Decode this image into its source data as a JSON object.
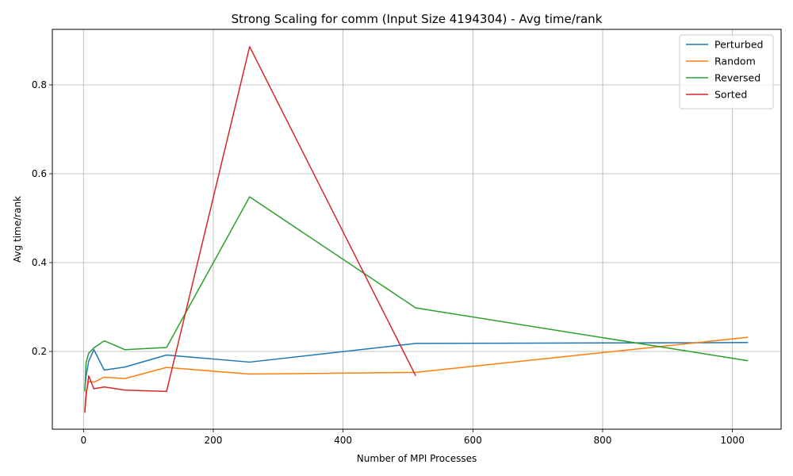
{
  "chart_data": {
    "type": "line",
    "title": "Strong Scaling for comm (Input Size 4194304) - Avg time/rank",
    "xlabel": "Number of MPI Processes",
    "ylabel": "Avg time/rank",
    "xlim": [
      -48,
      1075
    ],
    "ylim": [
      0.025,
      0.925
    ],
    "xticks": [
      0,
      200,
      400,
      600,
      800,
      1000
    ],
    "yticks": [
      0.2,
      0.4,
      0.6,
      0.8
    ],
    "grid": true,
    "legend_position": "top-right",
    "series": [
      {
        "name": "Perturbed",
        "color": "#1f77b4",
        "x": [
          2,
          4,
          8,
          16,
          32,
          64,
          128,
          256,
          512,
          1024
        ],
        "y": [
          0.115,
          0.145,
          0.178,
          0.204,
          0.158,
          0.165,
          0.192,
          0.176,
          0.218,
          0.22
        ]
      },
      {
        "name": "Random",
        "color": "#ff7f0e",
        "x": [
          2,
          4,
          8,
          16,
          32,
          64,
          128,
          256,
          512,
          1024
        ],
        "y": [
          0.068,
          0.11,
          0.132,
          0.131,
          0.142,
          0.139,
          0.164,
          0.149,
          0.153,
          0.232
        ]
      },
      {
        "name": "Reversed",
        "color": "#2ca02c",
        "x": [
          2,
          4,
          8,
          16,
          32,
          64,
          128,
          256,
          512,
          1024
        ],
        "y": [
          0.11,
          0.175,
          0.196,
          0.208,
          0.224,
          0.204,
          0.209,
          0.548,
          0.298,
          0.179
        ]
      },
      {
        "name": "Sorted",
        "color": "#d62728",
        "x": [
          2,
          4,
          8,
          16,
          32,
          64,
          128,
          256,
          512
        ],
        "y": [
          0.062,
          0.1,
          0.145,
          0.116,
          0.12,
          0.113,
          0.11,
          0.886,
          0.145
        ]
      }
    ]
  }
}
